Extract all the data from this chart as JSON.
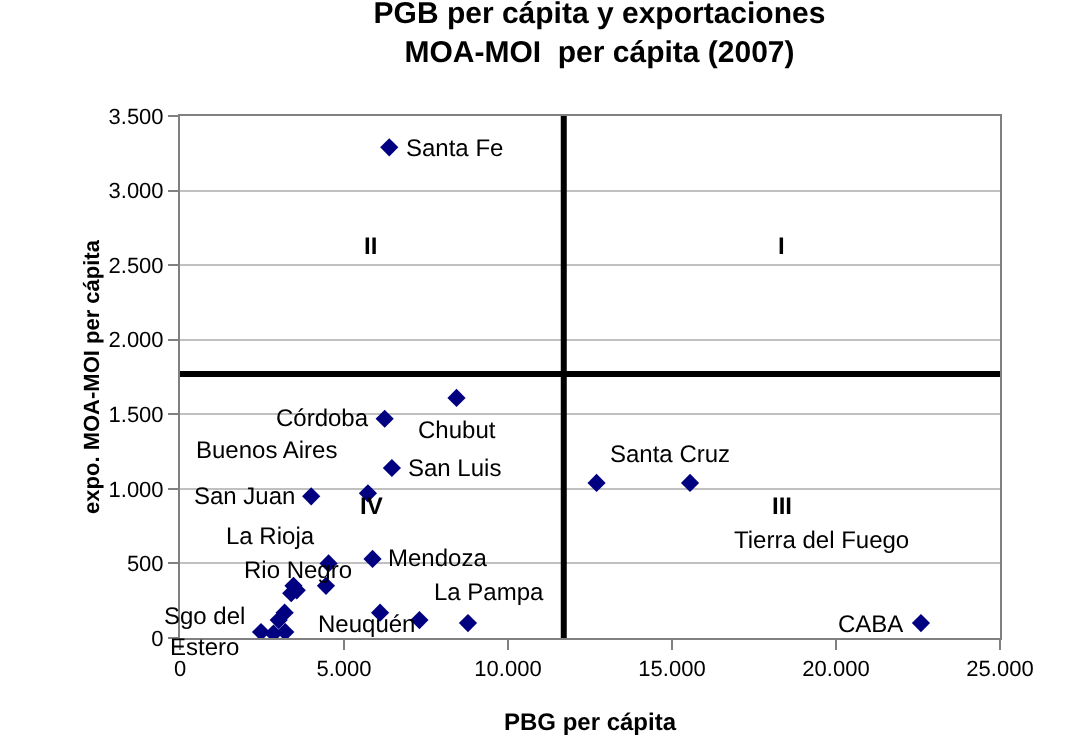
{
  "chart_data": {
    "type": "scatter",
    "title": "PGB per cápita y exportaciones\nMOA-MOI  per cápita (2007)",
    "xlabel": "PBG per cápita",
    "ylabel": "expo. MOA-MOI per cápita",
    "x": [
      6380,
      8430,
      6240,
      6460,
      4000,
      5730,
      4530,
      5870,
      4450,
      3460,
      3560,
      3390,
      6100,
      7300,
      8780,
      3190,
      3010,
      2470,
      2850,
      3210,
      12700,
      15550,
      22590
    ],
    "series": [
      {
        "color": "#000080",
        "values": [
          3290,
          1610,
          1470,
          1140,
          950,
          970,
          500,
          530,
          350,
          350,
          320,
          300,
          170,
          120,
          100,
          170,
          120,
          40,
          30,
          40,
          1040,
          1040,
          100
        ]
      }
    ],
    "xlim": [
      0,
      25000
    ],
    "ylim": [
      0,
      3500
    ],
    "xticks": [
      0,
      {
        "value": 5000,
        "label": "5.000"
      },
      {
        "value": 10000,
        "label": "10.000"
      },
      {
        "value": 15000,
        "label": "15.000"
      },
      {
        "value": 20000,
        "label": "20.000"
      },
      {
        "value": 25000,
        "label": "25.000"
      }
    ],
    "yticks": [
      0,
      500,
      {
        "value": 1000,
        "label": "1.000"
      },
      {
        "value": 1500,
        "label": "1.500"
      },
      {
        "value": 2000,
        "label": "2.000"
      },
      {
        "value": 2500,
        "label": "2.500"
      },
      {
        "value": 3000,
        "label": "3.000"
      },
      {
        "value": 3500,
        "label": "3.500"
      }
    ],
    "ref_lines": [
      {
        "axis": "x",
        "value": 11700,
        "color": "#000000"
      },
      {
        "axis": "y",
        "value": 1770,
        "color": "#000000"
      }
    ],
    "annotations": [
      "II",
      "I",
      "III",
      "IV",
      {
        "text": "Santa Fe",
        "x": 6380,
        "y": 3290
      },
      {
        "text": "Chubut",
        "x": 8430,
        "y": 1610
      },
      {
        "text": "Córdoba",
        "x": 6240,
        "y": 1470
      },
      {
        "text": "San Luis",
        "x": 6460,
        "y": 1140
      },
      {
        "text": "San Juan",
        "x": 4000,
        "y": 950
      },
      {
        "text": "Buenos Aires",
        "x": 5730,
        "y": 970
      },
      {
        "text": "Santa Cruz",
        "x": 12700,
        "y": 1040
      },
      {
        "text": "Tierra del Fuego",
        "x": 15550,
        "y": 1040
      },
      {
        "text": "La Rioja",
        "x": 4530,
        "y": 500
      },
      {
        "text": "Mendoza",
        "x": 5870,
        "y": 530
      },
      {
        "text": "Sgo del\nEstero",
        "x": 2470,
        "y": 40
      },
      {
        "text": "La Pampa",
        "x": 7300,
        "y": 120
      },
      {
        "text": "Rio Negro",
        "x": 6100,
        "y": 170
      },
      {
        "text": "Neuquén",
        "x": 8780,
        "y": 100
      },
      {
        "text": "CABA",
        "x": 22590,
        "y": 100
      }
    ],
    "grid": "y",
    "marker": "diamond"
  }
}
